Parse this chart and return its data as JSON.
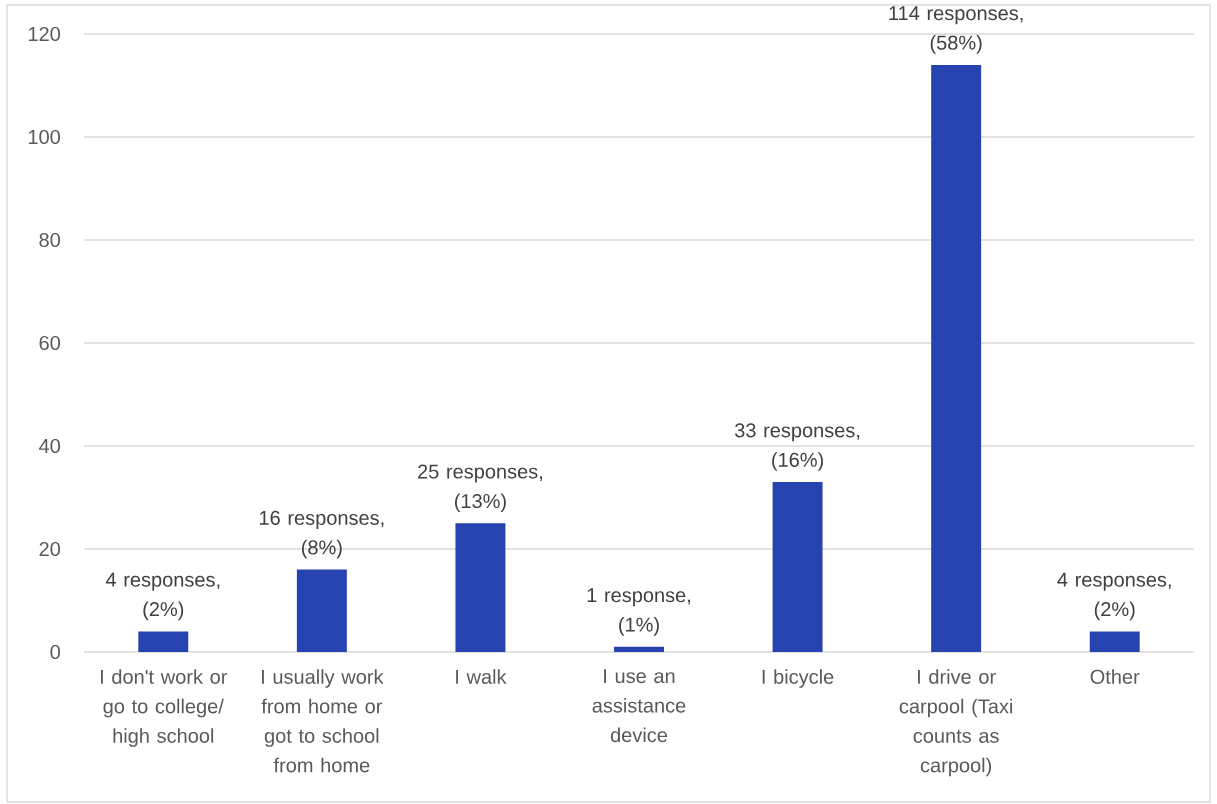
{
  "chart_data": {
    "type": "bar",
    "categories": [
      "I don't work or go to college/ high school",
      "I usually work from home or got to school from home",
      "I walk",
      "I use an assistance device",
      "I bicycle",
      "I drive or carpool (Taxi counts as carpool)",
      "Other"
    ],
    "values": [
      4,
      16,
      25,
      1,
      33,
      114,
      4
    ],
    "color": "#2643b0",
    "value_labels": [
      "4 responses, (2%)",
      "16 responses, (8%)",
      "25 responses, (13%)",
      "1 response, (1%)",
      "33 responses, (16%)",
      "114 responses, (58%)",
      "4 responses, (2%)"
    ],
    "ylim": [
      0,
      120
    ],
    "yticks": [
      0,
      20,
      40,
      60,
      80,
      100,
      120
    ],
    "grid": "y"
  }
}
